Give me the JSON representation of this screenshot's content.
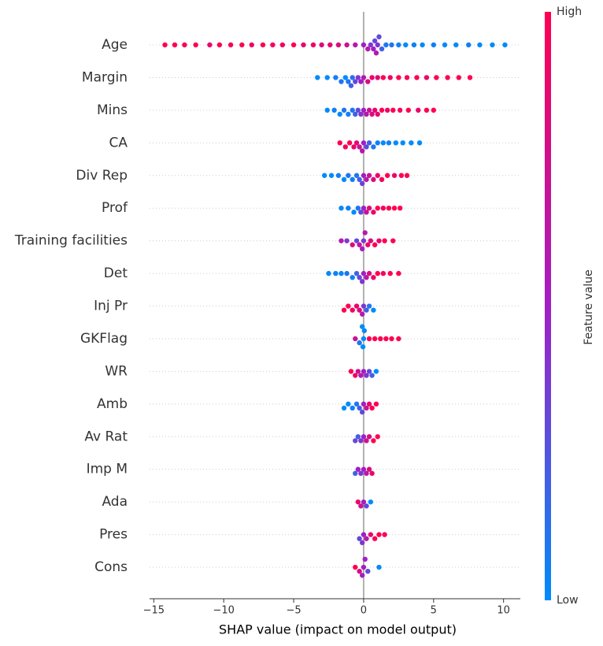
{
  "chart_data": {
    "type": "beeswarm",
    "xlabel": "SHAP value (impact on model output)",
    "colorbar_label": "Feature value",
    "colorbar_ticks": [
      {
        "value": 0,
        "label": "Low"
      },
      {
        "value": 1,
        "label": "High"
      }
    ],
    "colormap": [
      "#008bfb",
      "#a21fc4",
      "#ff0051"
    ],
    "xlim": [
      -15.3,
      11.2
    ],
    "xticks": [
      {
        "value": -15,
        "label": "−15"
      },
      {
        "value": -10,
        "label": "−10"
      },
      {
        "value": -5,
        "label": "−5"
      },
      0,
      5,
      10
    ],
    "series": [
      {
        "name": "Age",
        "values": [
          -14.2,
          -13.5,
          -12.8,
          -12,
          -11,
          -10.3,
          -9.5,
          -8.7,
          -8,
          -7.2,
          -6.5,
          -5.8,
          -5,
          -4.3,
          -3.6,
          -3,
          -2.4,
          -1.8,
          -1.2,
          -0.6,
          0,
          0.3,
          0.5,
          0.7,
          0.8,
          0.9,
          1,
          1.1,
          1.3,
          1.6,
          2,
          2.5,
          3,
          3.6,
          4.2,
          5,
          5.8,
          6.6,
          7.5,
          8.3,
          9.2,
          10.1
        ],
        "feature_values": [
          1,
          1,
          0.95,
          1,
          0.9,
          1,
          0.95,
          1,
          0.9,
          1,
          0.95,
          0.9,
          1,
          0.85,
          0.9,
          0.8,
          0.85,
          0.8,
          0.7,
          0.6,
          0.5,
          0.6,
          0.4,
          0.5,
          0.3,
          0.6,
          0.4,
          0.3,
          0.2,
          0.1,
          0.1,
          0.05,
          0,
          0.05,
          0,
          0.05,
          0,
          0,
          0.05,
          0,
          0,
          0
        ]
      },
      {
        "name": "Margin",
        "values": [
          -3.3,
          -2.6,
          -2,
          -1.6,
          -1.3,
          -1.1,
          -0.9,
          -0.8,
          -0.6,
          -0.4,
          -0.2,
          0,
          0.3,
          0.6,
          1,
          1.4,
          1.9,
          2.5,
          3.1,
          3.8,
          4.5,
          5.2,
          6,
          6.8,
          7.6
        ],
        "feature_values": [
          0,
          0,
          0.05,
          0.1,
          0,
          0.1,
          0.2,
          0.15,
          0.3,
          0.4,
          0.5,
          0.6,
          0.8,
          0.9,
          0.85,
          1,
          0.9,
          1,
          0.95,
          1,
          0.9,
          1,
          1,
          1,
          1
        ]
      },
      {
        "name": "Mins",
        "values": [
          -2.6,
          -2.1,
          -1.7,
          -1.4,
          -1.1,
          -0.8,
          -0.6,
          -0.4,
          -0.2,
          0,
          0.2,
          0.4,
          0.6,
          0.8,
          1,
          1.3,
          1.7,
          2.1,
          2.6,
          3.2,
          3.9,
          4.5,
          5
        ],
        "feature_values": [
          0,
          0.05,
          0,
          0.1,
          0.05,
          0.1,
          0.2,
          0.3,
          0.4,
          0.5,
          0.6,
          0.7,
          0.8,
          0.9,
          0.85,
          1,
          0.9,
          1,
          0.95,
          1,
          0.9,
          1,
          1
        ]
      },
      {
        "name": "CA",
        "values": [
          -1.7,
          -1.3,
          -1,
          -0.7,
          -0.5,
          -0.3,
          -0.1,
          0,
          0.2,
          0.4,
          0.7,
          1,
          1.4,
          1.8,
          2.3,
          2.8,
          3.4,
          4
        ],
        "feature_values": [
          1,
          0.95,
          1,
          0.9,
          0.85,
          0.7,
          0.6,
          0.5,
          0.3,
          0.2,
          0.1,
          0.05,
          0,
          0.05,
          0,
          0,
          0,
          0
        ]
      },
      {
        "name": "Div Rep",
        "values": [
          -2.8,
          -2.3,
          -1.8,
          -1.4,
          -1.1,
          -0.8,
          -0.5,
          -0.3,
          -0.1,
          0,
          0.2,
          0.4,
          0.7,
          1,
          1.3,
          1.7,
          2.2,
          2.7,
          3.1
        ],
        "feature_values": [
          0,
          0,
          0.05,
          0,
          0.1,
          0.05,
          0.1,
          0.2,
          0.35,
          0.5,
          0.6,
          0.7,
          0.8,
          0.9,
          0.95,
          1,
          0.9,
          1,
          1
        ]
      },
      {
        "name": "Prof",
        "values": [
          -1.6,
          -1.1,
          -0.7,
          -0.4,
          -0.2,
          0,
          0.2,
          0.4,
          0.7,
          1,
          1.4,
          1.8,
          2.2,
          2.6
        ],
        "feature_values": [
          0,
          0.05,
          0,
          0.1,
          0.3,
          0.5,
          0.7,
          0.8,
          0.9,
          1,
          0.95,
          1,
          1,
          1
        ]
      },
      {
        "name": "Training facilities",
        "values": [
          -1.6,
          -1.2,
          -0.8,
          -0.5,
          -0.3,
          -0.1,
          0,
          0.1,
          0.3,
          0.5,
          0.8,
          1.1,
          1.5,
          2.1
        ],
        "feature_values": [
          0.6,
          0.4,
          0.8,
          0.3,
          0.7,
          0.5,
          0.4,
          0.6,
          0.9,
          0.8,
          1,
          0.9,
          1,
          1
        ]
      },
      {
        "name": "Det",
        "values": [
          -2.5,
          -2,
          -1.6,
          -1.2,
          -0.8,
          -0.5,
          -0.3,
          -0.1,
          0,
          0.2,
          0.4,
          0.7,
          1,
          1.4,
          1.9,
          2.5
        ],
        "feature_values": [
          0,
          0.05,
          0,
          0.1,
          0.05,
          0.2,
          0.3,
          0.4,
          0.5,
          0.6,
          0.8,
          0.9,
          1,
          0.95,
          1,
          1
        ]
      },
      {
        "name": "Inj Pr",
        "values": [
          -1.4,
          -1.1,
          -0.8,
          -0.5,
          -0.3,
          -0.1,
          0,
          0.2,
          0.4,
          0.7
        ],
        "feature_values": [
          1,
          1,
          0.95,
          0.9,
          0.8,
          0.6,
          0.4,
          0.2,
          0.1,
          0
        ]
      },
      {
        "name": "GKFlag",
        "values": [
          -0.6,
          -0.3,
          -0.1,
          -0.05,
          0,
          0.05,
          0.4,
          0.8,
          1.2,
          1.6,
          2,
          2.5
        ],
        "feature_values": [
          0.7,
          0.1,
          0,
          0,
          0,
          0,
          1,
          1,
          1,
          1,
          1,
          1
        ]
      },
      {
        "name": "WR",
        "values": [
          -0.9,
          -0.6,
          -0.4,
          -0.2,
          0,
          0.2,
          0.4,
          0.6,
          0.9
        ],
        "feature_values": [
          1,
          0.9,
          0.7,
          0.6,
          0.5,
          0.4,
          0.3,
          0.2,
          0
        ]
      },
      {
        "name": "Amb",
        "values": [
          -1.4,
          -1.1,
          -0.8,
          -0.5,
          -0.3,
          -0.1,
          0,
          0.2,
          0.4,
          0.6,
          0.9
        ],
        "feature_values": [
          0,
          0,
          0.05,
          0.1,
          0.2,
          0.3,
          0.5,
          0.7,
          0.9,
          1,
          1
        ]
      },
      {
        "name": "Av Rat",
        "values": [
          -0.6,
          -0.4,
          -0.2,
          0,
          0.2,
          0.4,
          0.7,
          1
        ],
        "feature_values": [
          0.3,
          0.2,
          0.4,
          0.5,
          0.7,
          0.8,
          1,
          1
        ]
      },
      {
        "name": "Imp M",
        "values": [
          -0.6,
          -0.4,
          -0.2,
          0,
          0.2,
          0.4,
          0.6
        ],
        "feature_values": [
          0.2,
          0.5,
          0.4,
          0.5,
          0.6,
          0.8,
          0.9
        ]
      },
      {
        "name": "Ada",
        "values": [
          -0.4,
          -0.2,
          0,
          0.2,
          0.5
        ],
        "feature_values": [
          0.9,
          0.7,
          0.5,
          0.3,
          0
        ]
      },
      {
        "name": "Pres",
        "values": [
          -0.3,
          -0.1,
          0,
          0.2,
          0.5,
          0.8,
          1.1,
          1.5
        ],
        "feature_values": [
          0.3,
          0.4,
          0.5,
          0.6,
          0.9,
          1,
          1,
          1
        ]
      },
      {
        "name": "Cons",
        "values": [
          -0.6,
          -0.3,
          -0.1,
          0,
          0.1,
          0.3,
          1.1
        ],
        "feature_values": [
          1,
          0.8,
          0.5,
          0.5,
          0.5,
          0.3,
          0
        ]
      }
    ]
  }
}
